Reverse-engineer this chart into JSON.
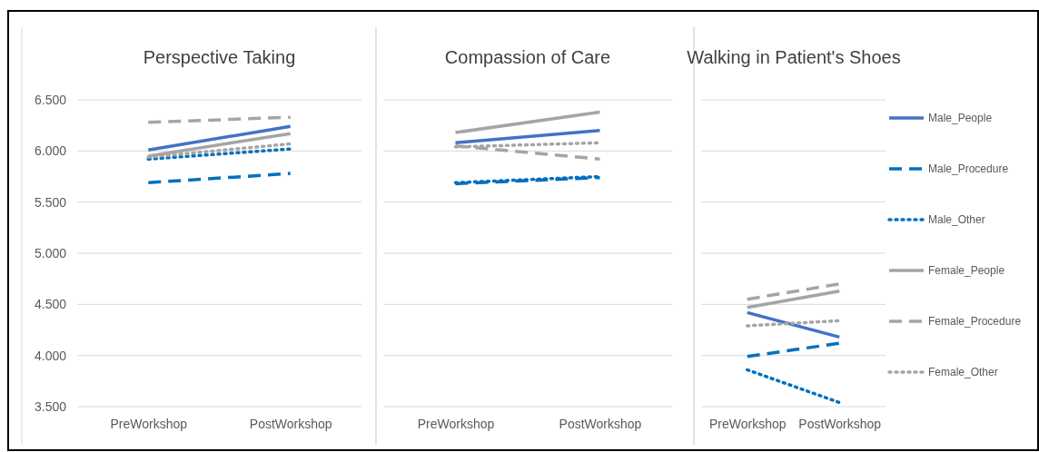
{
  "chart_data": [
    {
      "type": "line",
      "title": "Perspective Taking",
      "categories": [
        "PreWorkshop",
        "PostWorkshop"
      ],
      "ylim": [
        3.5,
        6.5
      ],
      "yticks": [
        {
          "value": 3.5,
          "label": "3.500"
        },
        {
          "value": 4,
          "label": "4.000"
        },
        {
          "value": 4.5,
          "label": "4.500"
        },
        {
          "value": 5,
          "label": "5.000"
        },
        {
          "value": 5.5,
          "label": "5.500"
        },
        {
          "value": 6,
          "label": "6.000"
        },
        {
          "value": 6.5,
          "label": "6.500"
        }
      ],
      "grid": "y",
      "legend": false,
      "series": [
        {
          "color": "#4472c4",
          "line_style": "solid",
          "values": [
            6.01,
            6.24
          ]
        },
        {
          "color": "#0070c0",
          "line_style": "dashed",
          "values": [
            5.69,
            5.78
          ]
        },
        {
          "color": "#0070c0",
          "line_style": "dotted",
          "values": [
            5.92,
            6.02
          ]
        },
        {
          "color": "#a5a5a5",
          "line_style": "solid",
          "values": [
            5.95,
            6.17
          ]
        },
        {
          "color": "#a5a5a5",
          "line_style": "dashed",
          "values": [
            6.28,
            6.33
          ]
        },
        {
          "color": "#a5a5a5",
          "line_style": "dotted",
          "values": [
            5.94,
            6.07
          ]
        }
      ]
    },
    {
      "type": "line",
      "title": "Compassion of Care",
      "categories": [
        "PreWorkshop",
        "PostWorkshop"
      ],
      "ylim": [
        3.5,
        6.5
      ],
      "yticks": [
        3.5,
        4,
        4.5,
        5,
        5.5,
        6,
        6.5
      ],
      "tick_labels": "x",
      "grid": "y",
      "legend": false,
      "series": [
        {
          "color": "#4472c4",
          "line_style": "solid",
          "values": [
            6.08,
            6.2
          ]
        },
        {
          "color": "#0070c0",
          "line_style": "dashed",
          "values": [
            5.68,
            5.74
          ]
        },
        {
          "color": "#0070c0",
          "line_style": "dotted",
          "values": [
            5.69,
            5.75
          ]
        },
        {
          "color": "#a5a5a5",
          "line_style": "solid",
          "values": [
            6.18,
            6.38
          ]
        },
        {
          "color": "#a5a5a5",
          "line_style": "dashed",
          "values": [
            6.05,
            5.92
          ]
        },
        {
          "color": "#a5a5a5",
          "line_style": "dotted",
          "values": [
            6.04,
            6.08
          ]
        }
      ]
    },
    {
      "type": "line",
      "title": "Walking in Patient's Shoes",
      "categories": [
        "PreWorkshop",
        "PostWorkshop"
      ],
      "ylim": [
        3.5,
        6.5
      ],
      "yticks": [
        3.5,
        4,
        4.5,
        5,
        5.5,
        6,
        6.5
      ],
      "tick_labels": "x",
      "grid": "y",
      "legend": "right",
      "series": [
        {
          "name": "Male_People",
          "color": "#4472c4",
          "line_style": "solid",
          "values": [
            4.42,
            4.18
          ]
        },
        {
          "name": "Male_Procedure",
          "color": "#0070c0",
          "line_style": "dashed",
          "values": [
            3.99,
            4.12
          ]
        },
        {
          "name": "Male_Other",
          "color": "#0070c0",
          "line_style": "dotted",
          "values": [
            3.86,
            3.54
          ]
        },
        {
          "name": "Female_People",
          "color": "#a5a5a5",
          "line_style": "solid",
          "values": [
            4.47,
            4.63
          ]
        },
        {
          "name": "Female_Procedure",
          "color": "#a5a5a5",
          "line_style": "dashed",
          "values": [
            4.55,
            4.7
          ]
        },
        {
          "name": "Female_Other",
          "color": "#a5a5a5",
          "line_style": "dotted",
          "values": [
            4.29,
            4.34
          ]
        }
      ]
    }
  ]
}
